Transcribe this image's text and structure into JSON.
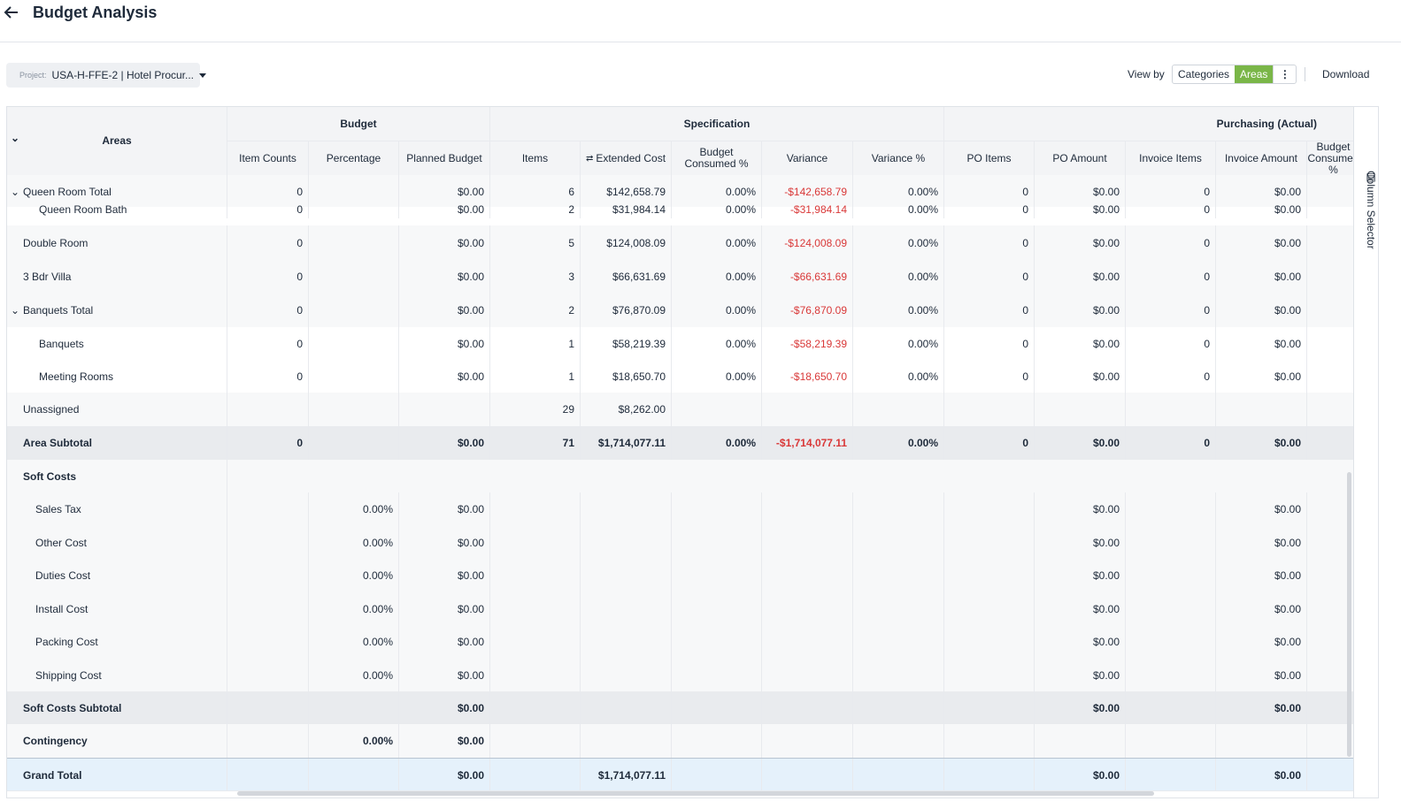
{
  "header": {
    "title": "Budget Analysis"
  },
  "toolbar": {
    "project_label": "Project:",
    "project_value": "USA-H-FFE-2 | Hotel Procur...",
    "view_by_label": "View by",
    "view_options": [
      "Categories",
      "Areas"
    ],
    "view_selected": "Areas",
    "download_label": "Download",
    "column_selector_label": "Column Selector"
  },
  "colors": {
    "accent_green": "#7ab648",
    "negative": "#d93838",
    "grand_total_bg": "#e5f1fb"
  },
  "table": {
    "group_headers": [
      "Budget",
      "Specification",
      "Purchasing (Actual)"
    ],
    "area_header": "Areas",
    "columns": [
      "Item Counts",
      "Percentage",
      "Planned Budget",
      "Items",
      "Extended Cost",
      "Budget Consumed %",
      "Variance",
      "Variance %",
      "PO Items",
      "PO Amount",
      "Invoice Items",
      "Invoice Amount",
      "Budget Consumed %"
    ],
    "rows": [
      {
        "label": "Queen Room Total",
        "expand": true,
        "cells": [
          "0",
          "",
          "$0.00",
          "6",
          "$142,658.79",
          "0.00%",
          "-$142,658.79",
          "0.00%",
          "0",
          "$0.00",
          "0",
          "$0.00",
          ""
        ]
      },
      {
        "label": "Queen Room Bath",
        "cells": [
          "0",
          "",
          "$0.00",
          "2",
          "$31,984.14",
          "0.00%",
          "-$31,984.14",
          "0.00%",
          "0",
          "$0.00",
          "0",
          "$0.00",
          ""
        ]
      },
      {
        "label": "Double Room",
        "cells": [
          "0",
          "",
          "$0.00",
          "5",
          "$124,008.09",
          "0.00%",
          "-$124,008.09",
          "0.00%",
          "0",
          "$0.00",
          "0",
          "$0.00",
          ""
        ]
      },
      {
        "label": "3 Bdr Villa",
        "cells": [
          "0",
          "",
          "$0.00",
          "3",
          "$66,631.69",
          "0.00%",
          "-$66,631.69",
          "0.00%",
          "0",
          "$0.00",
          "0",
          "$0.00",
          ""
        ]
      },
      {
        "label": "Banquets Total",
        "expand": true,
        "cells": [
          "0",
          "",
          "$0.00",
          "2",
          "$76,870.09",
          "0.00%",
          "-$76,870.09",
          "0.00%",
          "0",
          "$0.00",
          "0",
          "$0.00",
          ""
        ]
      },
      {
        "label": "Banquets",
        "cells": [
          "0",
          "",
          "$0.00",
          "1",
          "$58,219.39",
          "0.00%",
          "-$58,219.39",
          "0.00%",
          "0",
          "$0.00",
          "0",
          "$0.00",
          ""
        ]
      },
      {
        "label": "Meeting Rooms",
        "cells": [
          "0",
          "",
          "$0.00",
          "1",
          "$18,650.70",
          "0.00%",
          "-$18,650.70",
          "0.00%",
          "0",
          "$0.00",
          "0",
          "$0.00",
          ""
        ]
      },
      {
        "label": "Unassigned",
        "cells": [
          "",
          "",
          "",
          "29",
          "$8,262.00",
          "",
          "",
          "",
          "",
          "",
          "",
          "",
          ""
        ]
      },
      {
        "label": "Area Subtotal",
        "cells": [
          "0",
          "",
          "$0.00",
          "71",
          "$1,714,077.11",
          "0.00%",
          "-$1,714,077.11",
          "0.00%",
          "0",
          "$0.00",
          "0",
          "$0.00",
          ""
        ]
      },
      {
        "label": "Soft Costs",
        "cells": [
          "",
          "",
          "",
          "",
          "",
          "",
          "",
          "",
          "",
          "",
          "",
          "",
          ""
        ]
      },
      {
        "label": "Sales Tax",
        "cells": [
          "",
          "0.00%",
          "$0.00",
          "",
          "",
          "",
          "",
          "",
          "",
          "$0.00",
          "",
          "$0.00",
          ""
        ]
      },
      {
        "label": "Other Cost",
        "cells": [
          "",
          "0.00%",
          "$0.00",
          "",
          "",
          "",
          "",
          "",
          "",
          "$0.00",
          "",
          "$0.00",
          ""
        ]
      },
      {
        "label": "Duties Cost",
        "cells": [
          "",
          "0.00%",
          "$0.00",
          "",
          "",
          "",
          "",
          "",
          "",
          "$0.00",
          "",
          "$0.00",
          ""
        ]
      },
      {
        "label": "Install Cost",
        "cells": [
          "",
          "0.00%",
          "$0.00",
          "",
          "",
          "",
          "",
          "",
          "",
          "$0.00",
          "",
          "$0.00",
          ""
        ]
      },
      {
        "label": "Packing Cost",
        "cells": [
          "",
          "0.00%",
          "$0.00",
          "",
          "",
          "",
          "",
          "",
          "",
          "$0.00",
          "",
          "$0.00",
          ""
        ]
      },
      {
        "label": "Shipping Cost",
        "cells": [
          "",
          "0.00%",
          "$0.00",
          "",
          "",
          "",
          "",
          "",
          "",
          "$0.00",
          "",
          "$0.00",
          ""
        ]
      },
      {
        "label": "Soft Costs Subtotal",
        "cells": [
          "",
          "",
          "$0.00",
          "",
          "",
          "",
          "",
          "",
          "",
          "$0.00",
          "",
          "$0.00",
          ""
        ]
      },
      {
        "label": "Contingency",
        "cells": [
          "",
          "0.00%",
          "$0.00",
          "",
          "",
          "",
          "",
          "",
          "",
          "",
          "",
          "",
          ""
        ]
      },
      {
        "label": "Grand Total",
        "cells": [
          "",
          "",
          "$0.00",
          "",
          "$1,714,077.11",
          "",
          "",
          "",
          "",
          "$0.00",
          "",
          "$0.00",
          ""
        ]
      }
    ]
  }
}
